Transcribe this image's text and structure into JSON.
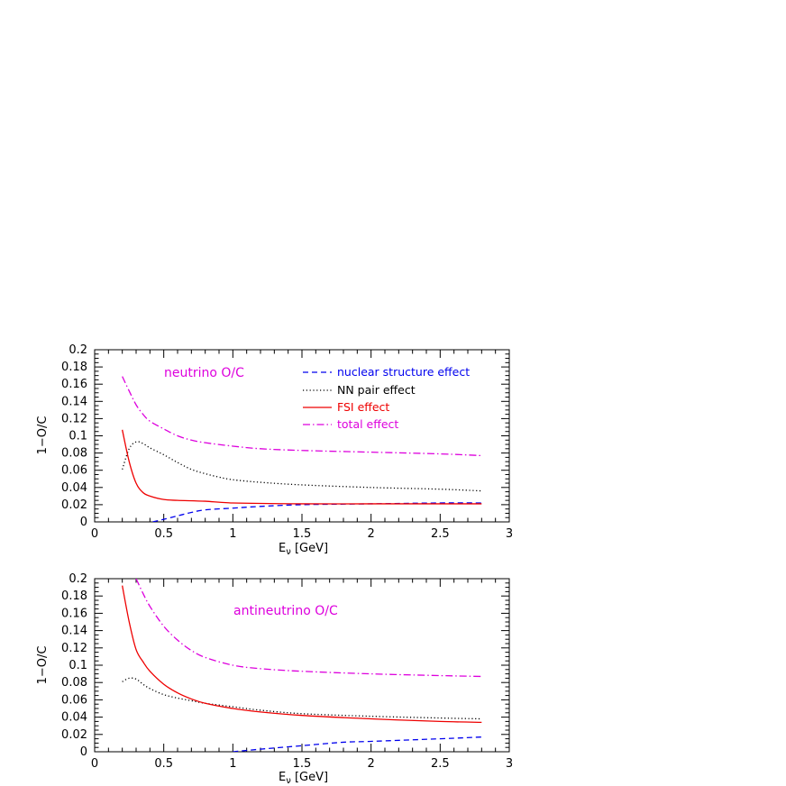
{
  "chart_data": [
    {
      "type": "line",
      "title": "neutrino O/C",
      "title_color": "#dd00dd",
      "xlabel": "E",
      "xlabel_sub": "ν",
      "xlabel_unit": " [GeV]",
      "ylabel": "1−O/C",
      "xlim": [
        0,
        3
      ],
      "ylim": [
        0,
        0.2
      ],
      "xticks": [
        0,
        0.5,
        1,
        1.5,
        2,
        2.5,
        3
      ],
      "xtick_labels": [
        "0",
        "0.5",
        "1",
        "1.5",
        "2",
        "2.5",
        "3"
      ],
      "yticks": [
        0,
        0.02,
        0.04,
        0.06,
        0.08,
        0.1,
        0.12,
        0.14,
        0.16,
        0.18,
        0.2
      ],
      "ytick_labels": [
        "0",
        "0.02",
        "0.04",
        "0.06",
        "0.08",
        "0.1",
        "0.12",
        "0.14",
        "0.16",
        "0.18",
        "0.2"
      ],
      "legend_location": "top-right",
      "series": [
        {
          "name": "nuclear structure effect",
          "color": "#0000ee",
          "style": "dashed",
          "x": [
            0.42,
            0.5,
            0.6,
            0.7,
            0.8,
            1.0,
            1.2,
            1.5,
            2.0,
            2.5,
            2.8
          ],
          "values": [
            0.0,
            0.003,
            0.007,
            0.011,
            0.014,
            0.016,
            0.018,
            0.02,
            0.021,
            0.022,
            0.022
          ]
        },
        {
          "name": "NN pair effect",
          "color": "#000000",
          "style": "dotted",
          "x": [
            0.2,
            0.25,
            0.3,
            0.35,
            0.4,
            0.5,
            0.6,
            0.7,
            0.8,
            0.9,
            1.0,
            1.2,
            1.5,
            2.0,
            2.5,
            2.8
          ],
          "values": [
            0.061,
            0.085,
            0.093,
            0.091,
            0.086,
            0.078,
            0.069,
            0.061,
            0.056,
            0.052,
            0.049,
            0.046,
            0.043,
            0.04,
            0.038,
            0.036
          ]
        },
        {
          "name": "FSI effect",
          "color": "#ee0000",
          "style": "solid",
          "x": [
            0.2,
            0.25,
            0.3,
            0.35,
            0.4,
            0.5,
            0.6,
            0.8,
            1.0,
            1.5,
            2.0,
            2.5,
            2.8
          ],
          "values": [
            0.107,
            0.07,
            0.045,
            0.034,
            0.03,
            0.026,
            0.025,
            0.024,
            0.022,
            0.021,
            0.021,
            0.021,
            0.021
          ]
        },
        {
          "name": "total effect",
          "color": "#dd00dd",
          "style": "dashdot",
          "x": [
            0.2,
            0.25,
            0.3,
            0.35,
            0.4,
            0.5,
            0.6,
            0.7,
            0.8,
            1.0,
            1.2,
            1.5,
            2.0,
            2.5,
            2.8
          ],
          "values": [
            0.169,
            0.152,
            0.136,
            0.125,
            0.117,
            0.108,
            0.1,
            0.095,
            0.092,
            0.088,
            0.085,
            0.083,
            0.081,
            0.079,
            0.077
          ]
        }
      ]
    },
    {
      "type": "line",
      "title": "antineutrino O/C",
      "title_color": "#dd00dd",
      "xlabel": "E",
      "xlabel_sub": "ν",
      "xlabel_unit": " [GeV]",
      "ylabel": "1−O/C",
      "xlim": [
        0,
        3
      ],
      "ylim": [
        0,
        0.2
      ],
      "xticks": [
        0,
        0.5,
        1,
        1.5,
        2,
        2.5,
        3
      ],
      "xtick_labels": [
        "0",
        "0.5",
        "1",
        "1.5",
        "2",
        "2.5",
        "3"
      ],
      "yticks": [
        0,
        0.02,
        0.04,
        0.06,
        0.08,
        0.1,
        0.12,
        0.14,
        0.16,
        0.18,
        0.2
      ],
      "ytick_labels": [
        "0",
        "0.02",
        "0.04",
        "0.06",
        "0.08",
        "0.1",
        "0.12",
        "0.14",
        "0.16",
        "0.18",
        "0.2"
      ],
      "series": [
        {
          "name": "nuclear structure effect",
          "color": "#0000ee",
          "style": "dashed",
          "x": [
            1.0,
            1.2,
            1.5,
            1.8,
            2.0,
            2.5,
            2.8
          ],
          "values": [
            0.0,
            0.003,
            0.007,
            0.011,
            0.012,
            0.015,
            0.017
          ]
        },
        {
          "name": "NN pair effect",
          "color": "#000000",
          "style": "dotted",
          "x": [
            0.2,
            0.25,
            0.3,
            0.35,
            0.4,
            0.5,
            0.6,
            0.7,
            0.8,
            1.0,
            1.2,
            1.5,
            2.0,
            2.5,
            2.8
          ],
          "values": [
            0.081,
            0.085,
            0.084,
            0.078,
            0.073,
            0.066,
            0.062,
            0.059,
            0.056,
            0.052,
            0.048,
            0.044,
            0.041,
            0.039,
            0.038
          ]
        },
        {
          "name": "FSI effect",
          "color": "#ee0000",
          "style": "solid",
          "x": [
            0.2,
            0.25,
            0.3,
            0.35,
            0.4,
            0.5,
            0.6,
            0.7,
            0.8,
            1.0,
            1.2,
            1.5,
            2.0,
            2.5,
            2.8
          ],
          "values": [
            0.192,
            0.15,
            0.118,
            0.104,
            0.093,
            0.078,
            0.068,
            0.061,
            0.056,
            0.05,
            0.046,
            0.042,
            0.038,
            0.035,
            0.034
          ]
        },
        {
          "name": "total effect",
          "color": "#dd00dd",
          "style": "dashdot",
          "x": [
            0.3,
            0.35,
            0.4,
            0.5,
            0.6,
            0.7,
            0.8,
            1.0,
            1.2,
            1.5,
            2.0,
            2.5,
            2.8
          ],
          "values": [
            0.2,
            0.183,
            0.168,
            0.145,
            0.129,
            0.117,
            0.109,
            0.1,
            0.096,
            0.093,
            0.09,
            0.088,
            0.087
          ]
        }
      ]
    }
  ]
}
